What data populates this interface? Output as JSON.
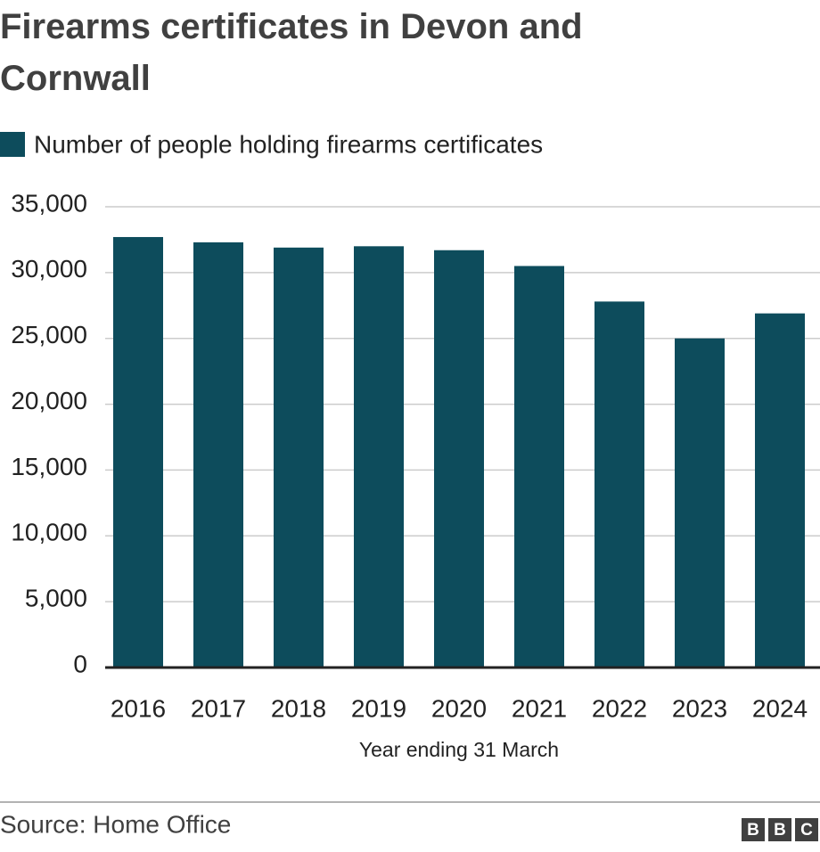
{
  "chart_data": {
    "type": "bar",
    "title": "Firearms certificates in Devon and Cornwall",
    "legend": "Number of people holding firearms certificates",
    "x_label": "Year ending 31 March",
    "source": "Source: Home Office",
    "logo": [
      "B",
      "B",
      "C"
    ],
    "categories": [
      "2016",
      "2017",
      "2018",
      "2019",
      "2020",
      "2021",
      "2022",
      "2023",
      "2024"
    ],
    "values": [
      32700,
      32300,
      31900,
      32000,
      31700,
      30500,
      27800,
      25000,
      26900
    ],
    "color": "#0d4c5c",
    "ylim": [
      0,
      35000
    ],
    "yticks": [
      0,
      {
        "value": 5000,
        "label": "5,000"
      },
      {
        "value": 10000,
        "label": "10,000"
      },
      {
        "value": 15000,
        "label": "15,000"
      },
      {
        "value": 20000,
        "label": "20,000"
      },
      {
        "value": 25000,
        "label": "25,000"
      },
      {
        "value": 30000,
        "label": "30,000"
      },
      {
        "value": 35000,
        "label": "35,000"
      }
    ],
    "grid": true
  }
}
